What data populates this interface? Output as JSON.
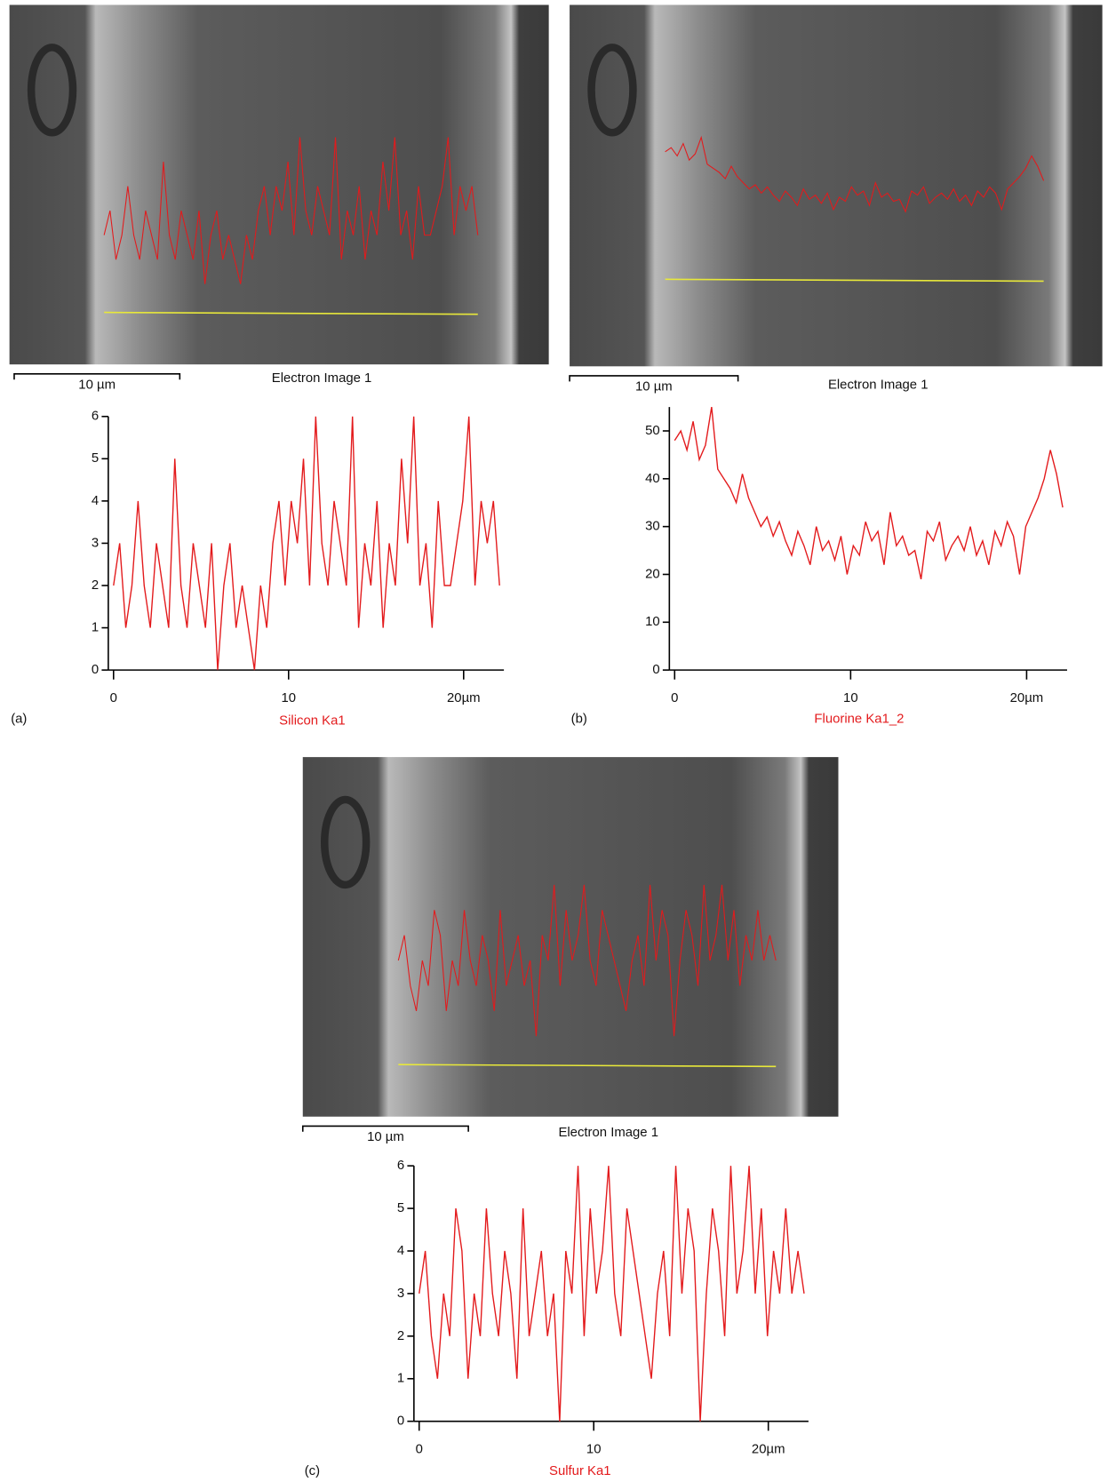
{
  "chart_data": [
    {
      "type": "line",
      "panel_label": "(a)",
      "xlabel": "Silicon Ka1",
      "scale_bar_label": "10 µm",
      "image_caption": "Electron Image 1",
      "color": "#e31a1c",
      "x": [
        0,
        0.35,
        0.7,
        1.05,
        1.4,
        1.75,
        2.1,
        2.45,
        2.8,
        3.15,
        3.5,
        3.85,
        4.2,
        4.55,
        4.9,
        5.25,
        5.6,
        5.95,
        6.3,
        6.65,
        7,
        7.35,
        7.7,
        8.05,
        8.4,
        8.75,
        9.1,
        9.45,
        9.8,
        10.15,
        10.5,
        10.85,
        11.2,
        11.55,
        11.9,
        12.25,
        12.6,
        12.95,
        13.3,
        13.65,
        14,
        14.35,
        14.7,
        15.05,
        15.4,
        15.75,
        16.1,
        16.45,
        16.8,
        17.15,
        17.5,
        17.85,
        18.2,
        18.55,
        18.9,
        19.25,
        19.6,
        19.95,
        20.3,
        20.65,
        21,
        21.35,
        21.7,
        22.05
      ],
      "values": [
        2,
        3,
        1,
        2,
        4,
        2,
        1,
        3,
        2,
        1,
        5,
        2,
        1,
        3,
        2,
        1,
        3,
        0,
        2,
        3,
        1,
        2,
        1,
        0,
        2,
        1,
        3,
        4,
        2,
        4,
        3,
        5,
        2,
        6,
        3,
        2,
        4,
        3,
        2,
        6,
        1,
        3,
        2,
        4,
        1,
        3,
        2,
        5,
        3,
        6,
        2,
        3,
        1,
        4,
        2,
        2,
        3,
        4,
        6,
        2,
        4,
        3,
        4,
        2
      ],
      "xlim": [
        -0.3,
        22.3
      ],
      "xticks": [
        0,
        10,
        {
          "value": 20,
          "label": "20µm"
        }
      ],
      "ylim": [
        0,
        6
      ],
      "yticks": [
        0,
        1,
        2,
        3,
        4,
        5,
        6
      ]
    },
    {
      "type": "line",
      "panel_label": "(b)",
      "xlabel": "Fluorine Ka1_2",
      "scale_bar_label": "10 µm",
      "image_caption": "Electron Image 1",
      "color": "#e31a1c",
      "x": [
        0,
        0.35,
        0.7,
        1.05,
        1.4,
        1.75,
        2.1,
        2.45,
        2.8,
        3.15,
        3.5,
        3.85,
        4.2,
        4.55,
        4.9,
        5.25,
        5.6,
        5.95,
        6.3,
        6.65,
        7,
        7.35,
        7.7,
        8.05,
        8.4,
        8.75,
        9.1,
        9.45,
        9.8,
        10.15,
        10.5,
        10.85,
        11.2,
        11.55,
        11.9,
        12.25,
        12.6,
        12.95,
        13.3,
        13.65,
        14,
        14.35,
        14.7,
        15.05,
        15.4,
        15.75,
        16.1,
        16.45,
        16.8,
        17.15,
        17.5,
        17.85,
        18.2,
        18.55,
        18.9,
        19.25,
        19.6,
        19.95,
        20.3,
        20.65,
        21,
        21.35,
        21.7,
        22.05
      ],
      "values": [
        48,
        50,
        46,
        52,
        44,
        47,
        55,
        42,
        40,
        38,
        35,
        41,
        36,
        33,
        30,
        32,
        28,
        31,
        27,
        24,
        29,
        26,
        22,
        30,
        25,
        27,
        23,
        28,
        20,
        26,
        24,
        31,
        27,
        29,
        22,
        33,
        26,
        28,
        24,
        25,
        19,
        29,
        27,
        31,
        23,
        26,
        28,
        25,
        30,
        24,
        27,
        22,
        29,
        26,
        31,
        28,
        20,
        30,
        33,
        36,
        40,
        46,
        41,
        34
      ],
      "xlim": [
        -0.3,
        22.3
      ],
      "xticks": [
        0,
        10,
        {
          "value": 20,
          "label": "20µm"
        }
      ],
      "ylim": [
        0,
        55
      ],
      "yticks": [
        0,
        10,
        20,
        30,
        40,
        50
      ]
    },
    {
      "type": "line",
      "panel_label": "(c)",
      "xlabel": "Sulfur Ka1",
      "scale_bar_label": "10 µm",
      "image_caption": "Electron Image 1",
      "color": "#e31a1c",
      "x": [
        0,
        0.35,
        0.7,
        1.05,
        1.4,
        1.75,
        2.1,
        2.45,
        2.8,
        3.15,
        3.5,
        3.85,
        4.2,
        4.55,
        4.9,
        5.25,
        5.6,
        5.95,
        6.3,
        6.65,
        7,
        7.35,
        7.7,
        8.05,
        8.4,
        8.75,
        9.1,
        9.45,
        9.8,
        10.15,
        10.5,
        10.85,
        11.2,
        11.55,
        11.9,
        12.25,
        12.6,
        12.95,
        13.3,
        13.65,
        14,
        14.35,
        14.7,
        15.05,
        15.4,
        15.75,
        16.1,
        16.45,
        16.8,
        17.15,
        17.5,
        17.85,
        18.2,
        18.55,
        18.9,
        19.25,
        19.6,
        19.95,
        20.3,
        20.65,
        21,
        21.35,
        21.7,
        22.05
      ],
      "values": [
        3,
        4,
        2,
        1,
        3,
        2,
        5,
        4,
        1,
        3,
        2,
        5,
        3,
        2,
        4,
        3,
        1,
        5,
        2,
        3,
        4,
        2,
        3,
        0,
        4,
        3,
        6,
        2,
        5,
        3,
        4,
        6,
        3,
        2,
        5,
        4,
        3,
        2,
        1,
        3,
        4,
        2,
        6,
        3,
        5,
        4,
        0,
        3,
        5,
        4,
        2,
        6,
        3,
        4,
        6,
        3,
        5,
        2,
        4,
        3,
        5,
        3,
        4,
        3
      ],
      "xlim": [
        -0.3,
        22.3
      ],
      "xticks": [
        0,
        10,
        {
          "value": 20,
          "label": "20µm"
        }
      ],
      "ylim": [
        0,
        6
      ],
      "yticks": [
        0,
        1,
        2,
        3,
        4,
        5,
        6
      ]
    }
  ]
}
